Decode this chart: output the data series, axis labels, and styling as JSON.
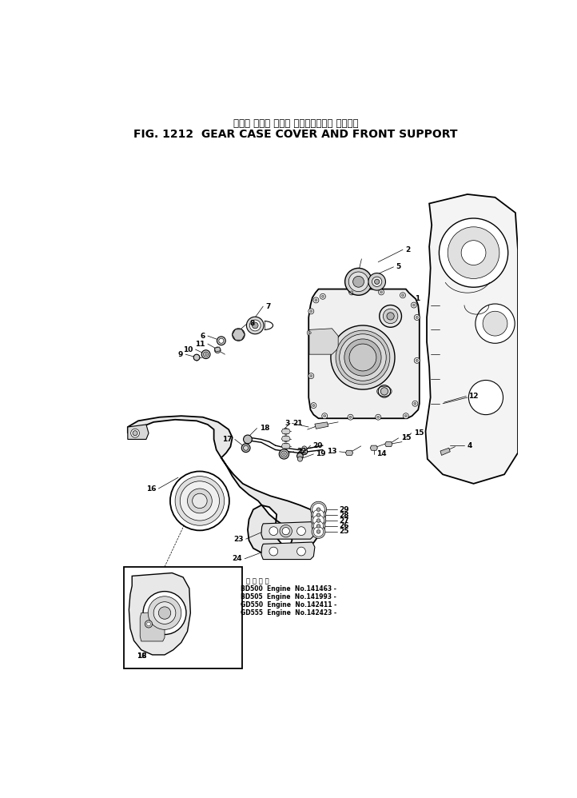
{
  "title_japanese": "ギヤー ケース カバー およびフロント サポート",
  "title_english": "FIG. 1212  GEAR CASE COVER AND FRONT SUPPORT",
  "bg_color": "#ffffff",
  "footnote_lines": [
    "適 用 号 番",
    "BD500  Engine  No.141463 -",
    "BD505  Engine  No.141993 -",
    "GD550  Engine  No.142411 -",
    "GD555  Engine  No.142423 -"
  ],
  "fig_width": 7.22,
  "fig_height": 9.98,
  "dpi": 100
}
